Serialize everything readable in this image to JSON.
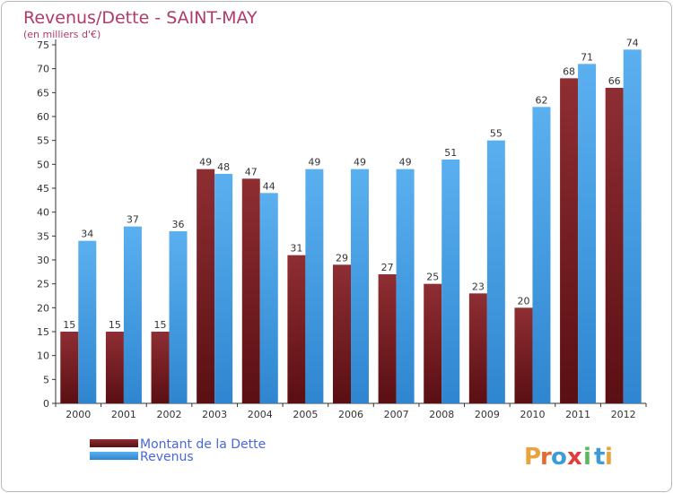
{
  "chart_data": {
    "type": "bar",
    "title": "Revenus/Dette - SAINT-MAY",
    "subtitle": "(en milliers d'€)",
    "categories": [
      "2000",
      "2001",
      "2002",
      "2003",
      "2004",
      "2005",
      "2006",
      "2007",
      "2008",
      "2009",
      "2010",
      "2011",
      "2012"
    ],
    "series": [
      {
        "name": "Montant de la Dette",
        "values": [
          15,
          15,
          15,
          49,
          47,
          31,
          29,
          27,
          25,
          23,
          20,
          68,
          66
        ],
        "color": "#7a1f24"
      },
      {
        "name": "Revenus",
        "values": [
          34,
          37,
          36,
          48,
          44,
          49,
          49,
          49,
          51,
          55,
          62,
          71,
          74
        ],
        "color": "#3d9be6"
      }
    ],
    "ylim": [
      0,
      75
    ],
    "yticks": [
      0,
      5,
      10,
      15,
      20,
      25,
      30,
      35,
      40,
      45,
      50,
      55,
      60,
      65,
      70,
      75
    ],
    "grid": false,
    "legend": "bottom-left"
  },
  "brand": {
    "letters": [
      "P",
      "r",
      "o",
      "x",
      "i",
      "t",
      "i"
    ],
    "colors": [
      "#e8a33a",
      "#e26b2e",
      "#3f9bd8",
      "#e23b3b",
      "#5cb85c",
      "#3f9bd8",
      "#e8a33a"
    ]
  },
  "colors": {
    "title": "#b03a6a",
    "legend_text": "#4a67d8",
    "axis": "#333333"
  }
}
